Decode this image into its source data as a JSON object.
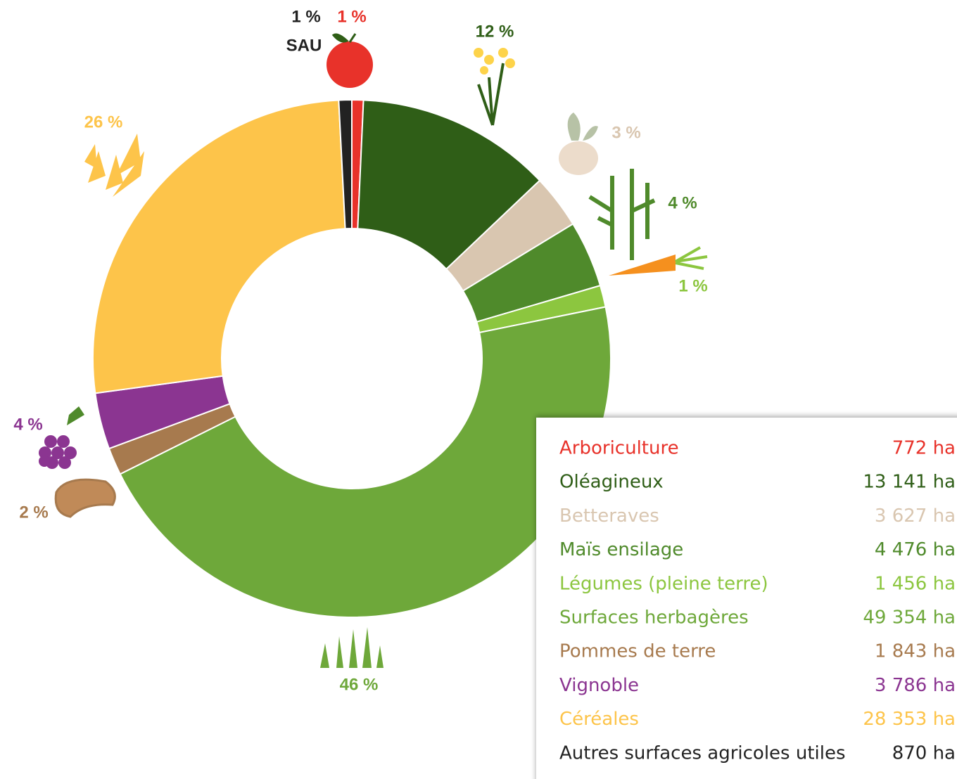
{
  "chart_data": {
    "type": "donut",
    "categories": [
      "Arboriculture",
      "Oléagineux",
      "Betteraves",
      "Maïs ensilage",
      "Légumes (pleine terre)",
      "Surfaces herbagères",
      "Pommes de terre",
      "Vignoble",
      "Céréales",
      "Autres surfaces agricoles utiles"
    ],
    "values": [
      772,
      13141,
      3627,
      4476,
      1456,
      49354,
      1843,
      3786,
      28353,
      870
    ],
    "value_labels": [
      "772 ha",
      "13 141 ha",
      "3 627 ha",
      "4 476 ha",
      "1 456 ha",
      "49 354 ha",
      "1 843 ha",
      "3 786 ha",
      "28 353 ha",
      "870 ha"
    ],
    "percents": [
      1,
      12,
      3,
      4,
      1,
      46,
      2,
      4,
      26,
      1
    ],
    "percent_labels": [
      "1 %",
      "12 %",
      "3 %",
      "4 %",
      "1 %",
      "46 %",
      "2 %",
      "4 %",
      "26 %",
      "1 %"
    ],
    "colors": [
      "#e8322a",
      "#2f5e17",
      "#d9c6b0",
      "#4f8a2b",
      "#8cc63f",
      "#6ea83a",
      "#a77a4e",
      "#8b3591",
      "#fdc44a",
      "#222222"
    ],
    "sau_label": "SAU"
  }
}
